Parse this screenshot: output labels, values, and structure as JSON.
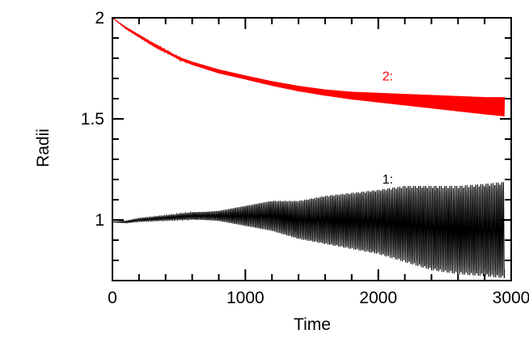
{
  "chart_data": {
    "type": "line",
    "xlabel": "Time",
    "ylabel": "Radii",
    "xlim": [
      0,
      3000
    ],
    "ylim": [
      0.7,
      2.0
    ],
    "x_ticks": [
      "0",
      "1000",
      "2000",
      "3000"
    ],
    "y_ticks": [
      "1",
      "1.5",
      "2"
    ],
    "series": [
      {
        "name": "2:",
        "color": "#ff0000",
        "x": [
          0,
          100,
          200,
          300,
          400,
          500,
          600,
          700,
          800,
          1000,
          1200,
          1400,
          1600,
          1800,
          2000,
          2200,
          2400,
          2600,
          2800,
          2950
        ],
        "mean": [
          2.0,
          1.95,
          1.91,
          1.87,
          1.835,
          1.8,
          1.775,
          1.755,
          1.735,
          1.705,
          1.675,
          1.65,
          1.63,
          1.615,
          1.605,
          1.595,
          1.585,
          1.575,
          1.565,
          1.56
        ],
        "amplitude": [
          0.0,
          0.003,
          0.004,
          0.005,
          0.006,
          0.007,
          0.008,
          0.009,
          0.01,
          0.01,
          0.012,
          0.014,
          0.016,
          0.02,
          0.025,
          0.03,
          0.035,
          0.04,
          0.045,
          0.05
        ]
      },
      {
        "name": "1:",
        "color": "#000000",
        "x": [
          0,
          100,
          200,
          300,
          400,
          500,
          600,
          700,
          800,
          1000,
          1200,
          1400,
          1600,
          1800,
          2000,
          2200,
          2400,
          2600,
          2800,
          2950
        ],
        "mean": [
          0.99,
          0.99,
          1.0,
          1.005,
          1.01,
          1.015,
          1.02,
          1.02,
          1.02,
          1.02,
          1.02,
          1.0,
          1.0,
          0.995,
          0.99,
          0.98,
          0.96,
          0.95,
          0.95,
          0.95
        ],
        "amplitude": [
          0.0,
          0.005,
          0.008,
          0.01,
          0.012,
          0.015,
          0.018,
          0.02,
          0.025,
          0.05,
          0.075,
          0.095,
          0.12,
          0.14,
          0.16,
          0.19,
          0.21,
          0.22,
          0.23,
          0.24
        ]
      }
    ]
  }
}
